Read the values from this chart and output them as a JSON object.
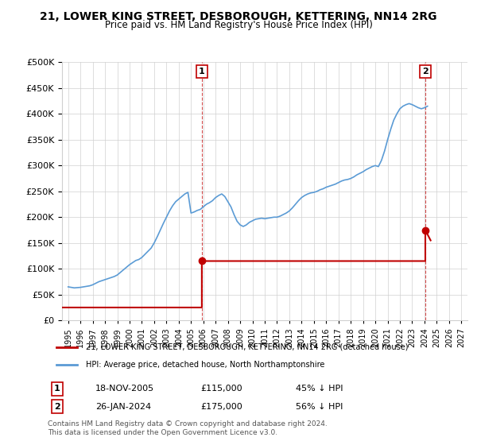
{
  "title": "21, LOWER KING STREET, DESBOROUGH, KETTERING, NN14 2RG",
  "subtitle": "Price paid vs. HM Land Registry's House Price Index (HPI)",
  "legend_line1": "21, LOWER KING STREET, DESBOROUGH, KETTERING, NN14 2RG (detached house)",
  "legend_line2": "HPI: Average price, detached house, North Northamptonshire",
  "annotation1_label": "1",
  "annotation1_date": "18-NOV-2005",
  "annotation1_price": "£115,000",
  "annotation1_hpi": "45% ↓ HPI",
  "annotation2_label": "2",
  "annotation2_date": "26-JAN-2024",
  "annotation2_price": "£175,000",
  "annotation2_hpi": "56% ↓ HPI",
  "footer": "Contains HM Land Registry data © Crown copyright and database right 2024.\nThis data is licensed under the Open Government Licence v3.0.",
  "hpi_color": "#5b9bd5",
  "price_color": "#c00000",
  "annotation_color": "#c00000",
  "background_color": "#ffffff",
  "grid_color": "#d0d0d0",
  "ylim": [
    0,
    500000
  ],
  "yticks": [
    0,
    50000,
    100000,
    150000,
    200000,
    250000,
    300000,
    350000,
    400000,
    450000,
    500000
  ],
  "xlim_start": 1994.5,
  "xlim_end": 2027.5,
  "xticks": [
    1995,
    1996,
    1997,
    1998,
    1999,
    2000,
    2001,
    2002,
    2003,
    2004,
    2005,
    2006,
    2007,
    2008,
    2009,
    2010,
    2011,
    2012,
    2013,
    2014,
    2015,
    2016,
    2017,
    2018,
    2019,
    2020,
    2021,
    2022,
    2023,
    2024,
    2025,
    2026,
    2027
  ],
  "ann1_x": 2005.88,
  "ann1_y": 115000,
  "ann2_x": 2024.07,
  "ann2_y": 175000,
  "hpi_data": {
    "years": [
      1995,
      1995.25,
      1995.5,
      1995.75,
      1996,
      1996.25,
      1996.5,
      1996.75,
      1997,
      1997.25,
      1997.5,
      1997.75,
      1998,
      1998.25,
      1998.5,
      1998.75,
      1999,
      1999.25,
      1999.5,
      1999.75,
      2000,
      2000.25,
      2000.5,
      2000.75,
      2001,
      2001.25,
      2001.5,
      2001.75,
      2002,
      2002.25,
      2002.5,
      2002.75,
      2003,
      2003.25,
      2003.5,
      2003.75,
      2004,
      2004.25,
      2004.5,
      2004.75,
      2005,
      2005.25,
      2005.5,
      2005.75,
      2006,
      2006.25,
      2006.5,
      2006.75,
      2007,
      2007.25,
      2007.5,
      2007.75,
      2008,
      2008.25,
      2008.5,
      2008.75,
      2009,
      2009.25,
      2009.5,
      2009.75,
      2010,
      2010.25,
      2010.5,
      2010.75,
      2011,
      2011.25,
      2011.5,
      2011.75,
      2012,
      2012.25,
      2012.5,
      2012.75,
      2013,
      2013.25,
      2013.5,
      2013.75,
      2014,
      2014.25,
      2014.5,
      2014.75,
      2015,
      2015.25,
      2015.5,
      2015.75,
      2016,
      2016.25,
      2016.5,
      2016.75,
      2017,
      2017.25,
      2017.5,
      2017.75,
      2018,
      2018.25,
      2018.5,
      2018.75,
      2019,
      2019.25,
      2019.5,
      2019.75,
      2020,
      2020.25,
      2020.5,
      2020.75,
      2021,
      2021.25,
      2021.5,
      2021.75,
      2022,
      2022.25,
      2022.5,
      2022.75,
      2023,
      2023.25,
      2023.5,
      2023.75,
      2024,
      2024.25
    ],
    "values": [
      65000,
      64000,
      63000,
      63500,
      64000,
      65000,
      66000,
      67000,
      69000,
      72000,
      75000,
      77000,
      79000,
      81000,
      83000,
      85000,
      88000,
      93000,
      98000,
      103000,
      108000,
      112000,
      116000,
      118000,
      122000,
      128000,
      134000,
      140000,
      150000,
      162000,
      175000,
      188000,
      200000,
      212000,
      222000,
      230000,
      235000,
      240000,
      245000,
      248000,
      208000,
      210000,
      213000,
      215000,
      220000,
      225000,
      228000,
      232000,
      238000,
      242000,
      245000,
      240000,
      230000,
      220000,
      205000,
      192000,
      185000,
      182000,
      185000,
      190000,
      193000,
      196000,
      197000,
      198000,
      197000,
      198000,
      199000,
      200000,
      200000,
      202000,
      205000,
      208000,
      212000,
      218000,
      225000,
      232000,
      238000,
      242000,
      245000,
      247000,
      248000,
      250000,
      253000,
      255000,
      258000,
      260000,
      262000,
      264000,
      267000,
      270000,
      272000,
      273000,
      275000,
      278000,
      282000,
      285000,
      288000,
      292000,
      295000,
      298000,
      300000,
      298000,
      310000,
      328000,
      350000,
      370000,
      388000,
      400000,
      410000,
      415000,
      418000,
      420000,
      418000,
      415000,
      412000,
      410000,
      412000,
      415000
    ]
  },
  "price_data": {
    "years": [
      2005.88,
      2024.07
    ],
    "values": [
      115000,
      175000
    ]
  }
}
